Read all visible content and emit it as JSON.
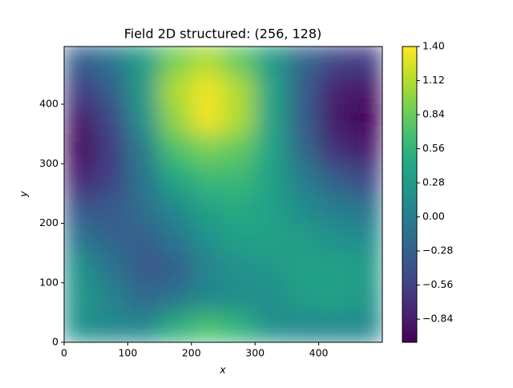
{
  "chart_data": {
    "type": "heatmap",
    "title": "Field 2D structured: (256, 128)",
    "xlabel": "x",
    "ylabel": "y",
    "colormap": "viridis",
    "x": [
      25,
      75,
      125,
      175,
      225,
      275,
      325,
      375,
      425,
      475
    ],
    "y": [
      25,
      75,
      125,
      175,
      225,
      275,
      325,
      375,
      425,
      475
    ],
    "z": [
      [
        0.2,
        0.1,
        0.1,
        0.5,
        0.7,
        0.55,
        0.2,
        0.1,
        0.1,
        0.1
      ],
      [
        0.25,
        0.05,
        -0.2,
        -0.1,
        0.1,
        0.15,
        0.15,
        0.3,
        0.35,
        0.25
      ],
      [
        0.2,
        -0.1,
        -0.35,
        -0.3,
        0.05,
        0.2,
        0.25,
        0.35,
        0.35,
        0.3
      ],
      [
        -0.1,
        -0.25,
        -0.3,
        -0.1,
        0.2,
        0.35,
        0.35,
        0.3,
        0.2,
        0.15
      ],
      [
        -0.4,
        -0.35,
        -0.15,
        0.1,
        0.35,
        0.45,
        0.35,
        0.15,
        0.0,
        -0.1
      ],
      [
        -0.8,
        -0.55,
        -0.1,
        0.4,
        0.6,
        0.6,
        0.35,
        0.0,
        -0.3,
        -0.5
      ],
      [
        -0.95,
        -0.6,
        0.0,
        0.7,
        0.9,
        0.8,
        0.4,
        -0.2,
        -0.7,
        -0.85
      ],
      [
        -0.85,
        -0.5,
        0.2,
        1.0,
        1.35,
        1.1,
        0.4,
        -0.3,
        -0.85,
        -1.0
      ],
      [
        -0.6,
        -0.3,
        0.3,
        1.1,
        1.35,
        1.1,
        0.4,
        -0.3,
        -0.8,
        -0.9
      ],
      [
        -0.3,
        -0.1,
        0.3,
        0.9,
        1.1,
        0.8,
        0.3,
        -0.2,
        -0.5,
        -0.6
      ]
    ],
    "xlim": [
      0,
      500
    ],
    "ylim": [
      0,
      497
    ],
    "xticks": [
      0,
      100,
      200,
      300,
      400
    ],
    "yticks": [
      0,
      100,
      200,
      300,
      400
    ],
    "zlim": [
      -1.03,
      1.4
    ],
    "zticks": [
      {
        "value": 1.4,
        "label": "1.40"
      },
      {
        "value": 1.12,
        "label": "1.12"
      },
      {
        "value": 0.84,
        "label": "0.84"
      },
      {
        "value": 0.56,
        "label": "0.56"
      },
      {
        "value": 0.28,
        "label": "0.28"
      },
      {
        "value": 0,
        "label": "0.00"
      },
      {
        "value": -0.28,
        "label": "−0.28"
      },
      {
        "value": -0.56,
        "label": "−0.56"
      },
      {
        "value": -0.84,
        "label": "−0.84"
      }
    ]
  }
}
